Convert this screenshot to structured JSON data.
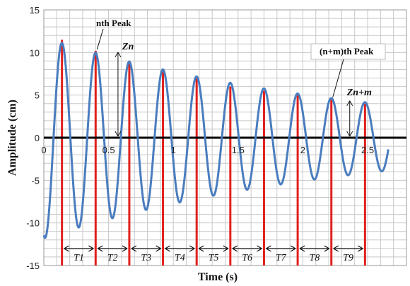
{
  "chart_data": {
    "type": "line",
    "xlabel": "Time (s)",
    "ylabel": "Amplitude  (cm)",
    "xlim": [
      0,
      2.8
    ],
    "ylim": [
      -15,
      15
    ],
    "x_ticks": [
      "0",
      "0.5",
      "1",
      "1.5",
      "2",
      "2.5"
    ],
    "y_ticks": [
      "-15",
      "-10",
      "-5",
      "0",
      "5",
      "10",
      "15"
    ],
    "grid": true,
    "series": [
      {
        "color": "#4a7dbf",
        "model": "damped_sine",
        "amplitude0": 11.8,
        "decay_rate": 0.42,
        "period": 0.26,
        "peak_times": [
          0.14,
          0.4,
          0.66,
          0.92,
          1.18,
          1.44,
          1.7,
          1.96,
          2.22,
          2.48
        ],
        "peak_values": [
          11.5,
          10.2,
          9.0,
          8.0,
          7.0,
          6.0,
          5.5,
          5.0,
          4.5,
          4.0
        ],
        "x_end": 2.66
      }
    ],
    "zero_line": {
      "y": 0,
      "color": "#000000"
    },
    "peak_markers": {
      "color": "#e0201c",
      "x": [
        0.14,
        0.4,
        0.66,
        0.92,
        1.18,
        1.44,
        1.7,
        1.96,
        2.22,
        2.48
      ]
    },
    "periods": [
      "T1",
      "T2",
      "T3",
      "T4",
      "T5",
      "T6",
      "T7",
      "T8",
      "T9"
    ],
    "annotations": {
      "nth_peak": "nth Peak",
      "nm_peak": "(n+m)th Peak",
      "z_n": "Zn",
      "z_nm": "Zn+m"
    }
  }
}
